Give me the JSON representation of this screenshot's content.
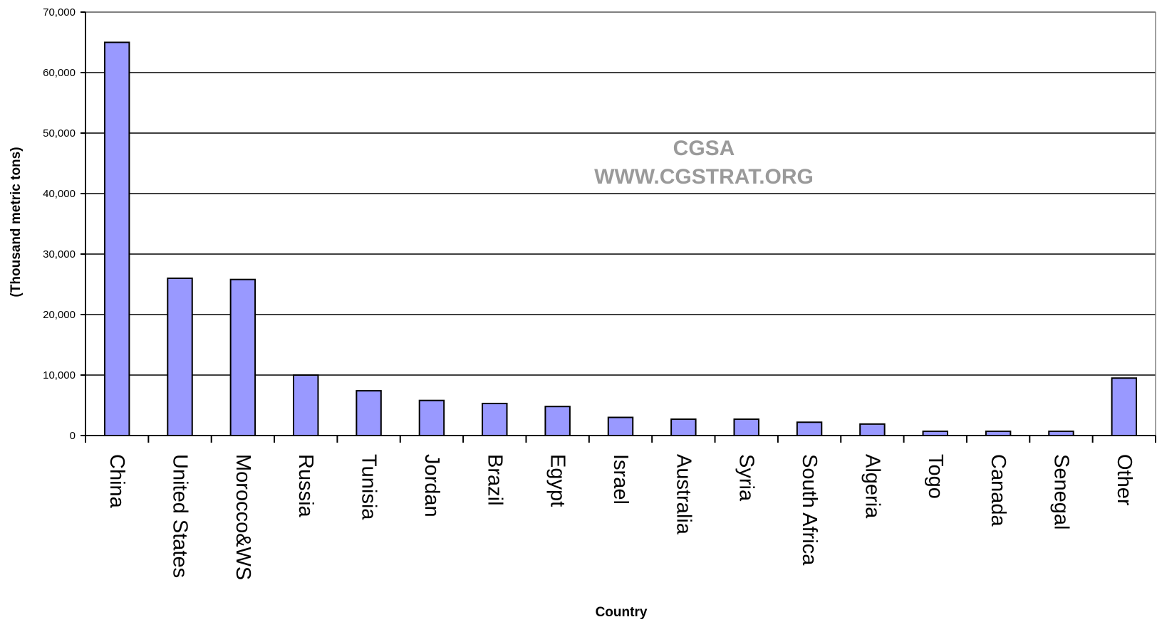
{
  "chart_data": {
    "type": "bar",
    "ylabel": "(Thousand metric tons)",
    "xlabel": "Country",
    "ylim": [
      0,
      70000
    ],
    "yticks": [
      0,
      10000,
      20000,
      30000,
      40000,
      50000,
      60000,
      70000
    ],
    "ytick_labels": [
      "0",
      "10,000",
      "20,000",
      "30,000",
      "40,000",
      "50,000",
      "60,000",
      "70,000"
    ],
    "grid": true,
    "categories": [
      "China",
      "United States",
      "Morocco&WS",
      "Russia",
      "Tunisia",
      "Jordan",
      "Brazil",
      "Egypt",
      "Israel",
      "Australia",
      "Syria",
      "South Africa",
      "Algeria",
      "Togo",
      "Canada",
      "Senegal",
      "Other"
    ],
    "values": [
      65000,
      26000,
      25800,
      10000,
      7400,
      5800,
      5300,
      4800,
      3000,
      2700,
      2700,
      2200,
      1900,
      700,
      700,
      700,
      9500
    ],
    "bar_color": "#9999ff",
    "annotations": [
      "CGSA",
      "WWW.CGSTRAT.ORG"
    ]
  }
}
